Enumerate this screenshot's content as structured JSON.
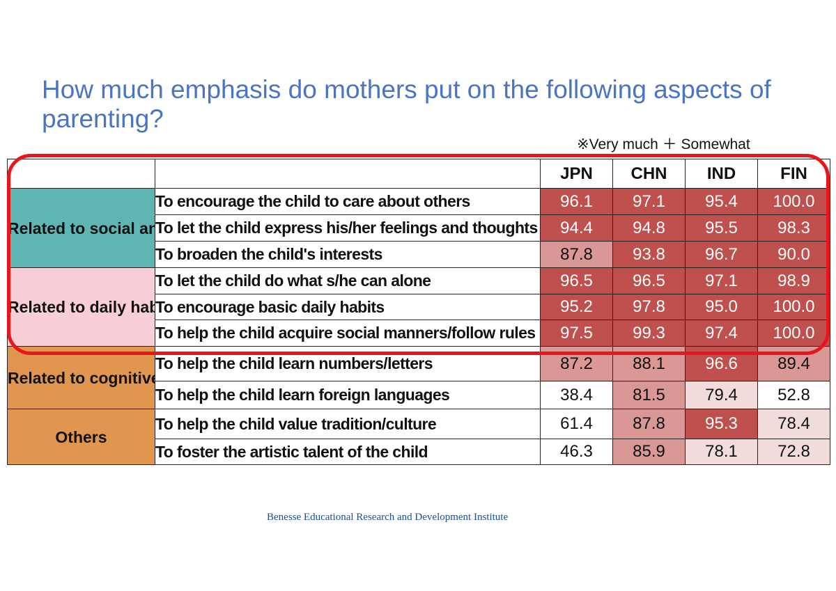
{
  "title": "How much emphasis do mothers put on the following aspects of parenting?",
  "note": "※Very much ＋ Somewhat",
  "unit": "（%）",
  "footer": "Benesse Educational Research and Development Institute",
  "colors": {
    "title": "#4a74c4",
    "highlight_border": "#e8161b",
    "cat_social": "#5fb4b4",
    "cat_daily": "#f8cfd6",
    "cat_cognitive": "#e0964e",
    "cat_others": "#e0964e",
    "val_dark": "#c0504d",
    "val_mid": "#d99795",
    "val_light": "#f2dcdb",
    "val_none": "#ffffff"
  },
  "chart_data": {
    "type": "table",
    "columns": [
      "JPN",
      "CHN",
      "IND",
      "FIN"
    ],
    "categories": [
      {
        "label": "Related to social and emotional skills",
        "rows": [
          0,
          1,
          2
        ]
      },
      {
        "label": "Related to daily habits",
        "rows": [
          3,
          4,
          5
        ]
      },
      {
        "label": "Related to cognitive skills",
        "rows": [
          6,
          7
        ]
      },
      {
        "label": "Others",
        "rows": [
          8,
          9
        ]
      }
    ],
    "rows": [
      {
        "label": "To encourage the child to care about others",
        "values": [
          "96.1",
          "97.1",
          "95.4",
          "100.0"
        ],
        "shade": [
          "dark",
          "dark",
          "dark",
          "dark"
        ]
      },
      {
        "label": "To let the child express his/her feelings and thoughts",
        "values": [
          "94.4",
          "94.8",
          "95.5",
          "98.3"
        ],
        "shade": [
          "dark",
          "dark",
          "dark",
          "dark"
        ]
      },
      {
        "label": "To broaden the child's interests",
        "values": [
          "87.8",
          "93.8",
          "96.7",
          "90.0"
        ],
        "shade": [
          "mid",
          "dark",
          "dark",
          "dark"
        ]
      },
      {
        "label": "To let the child do what s/he can alone",
        "values": [
          "96.5",
          "96.5",
          "97.1",
          "98.9"
        ],
        "shade": [
          "dark",
          "dark",
          "dark",
          "dark"
        ]
      },
      {
        "label": "To encourage basic daily habits",
        "values": [
          "95.2",
          "97.8",
          "95.0",
          "100.0"
        ],
        "shade": [
          "dark",
          "dark",
          "dark",
          "dark"
        ]
      },
      {
        "label": "To help the child acquire social manners/follow rules",
        "values": [
          "97.5",
          "99.3",
          "97.4",
          "100.0"
        ],
        "shade": [
          "dark",
          "dark",
          "dark",
          "dark"
        ]
      },
      {
        "label": "To help the child learn numbers/letters",
        "values": [
          "87.2",
          "88.1",
          "96.6",
          "89.4"
        ],
        "shade": [
          "mid",
          "mid",
          "dark",
          "mid"
        ]
      },
      {
        "label": "To help the child learn foreign languages",
        "values": [
          "38.4",
          "81.5",
          "79.4",
          "52.8"
        ],
        "shade": [
          "none",
          "mid",
          "light",
          "none"
        ]
      },
      {
        "label": "To help the child value tradition/culture",
        "values": [
          "61.4",
          "87.8",
          "95.3",
          "78.4"
        ],
        "shade": [
          "none",
          "mid",
          "dark",
          "light"
        ]
      },
      {
        "label": "To foster the artistic talent of the child",
        "values": [
          "46.3",
          "85.9",
          "78.1",
          "72.8"
        ],
        "shade": [
          "none",
          "mid",
          "light",
          "light"
        ]
      }
    ]
  }
}
